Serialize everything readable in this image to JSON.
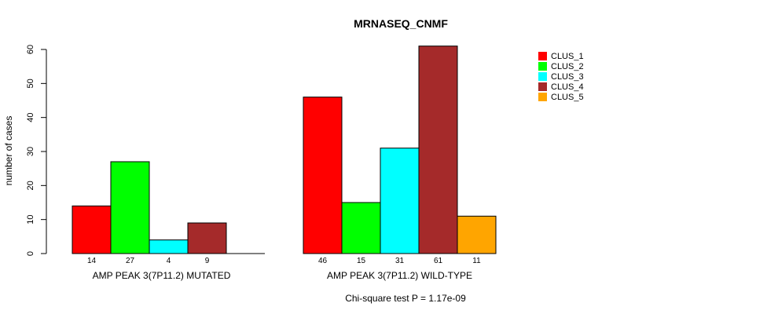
{
  "chart_data": {
    "type": "bar",
    "title": "MRNASEQ_CNMF",
    "ylabel": "number of cases",
    "ylim": [
      0,
      60
    ],
    "yticks": [
      0,
      10,
      20,
      30,
      40,
      50,
      60
    ],
    "series_names": [
      "CLUS_1",
      "CLUS_2",
      "CLUS_3",
      "CLUS_4",
      "CLUS_5"
    ],
    "colors": [
      "#ff0000",
      "#00ff00",
      "#00ffff",
      "#a52a2a",
      "#ffa500"
    ],
    "groups": [
      {
        "label": "AMP PEAK  3(7P11.2) MUTATED",
        "values": [
          14,
          27,
          4,
          9,
          0
        ],
        "labels": [
          "14",
          "27",
          "4",
          "9",
          ""
        ]
      },
      {
        "label": "AMP PEAK  3(7P11.2) WILD-TYPE",
        "values": [
          46,
          15,
          31,
          61,
          11
        ],
        "labels": [
          "46",
          "15",
          "31",
          "61",
          "11"
        ]
      }
    ],
    "legend_position": "top-right",
    "footnote": "Chi-square test P = 1.17e-09"
  }
}
